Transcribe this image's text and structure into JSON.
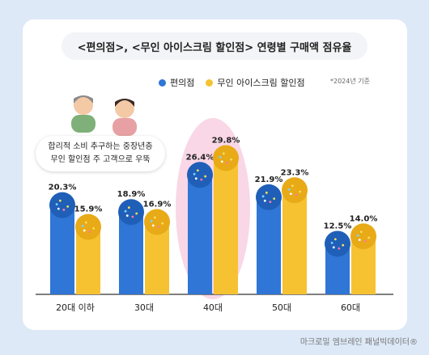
{
  "chart_data": {
    "type": "bar",
    "title": "<편의점>, <무인 아이스크림 할인점> 연령별 구매액 점유율",
    "categories": [
      "20대 이하",
      "30대",
      "40대",
      "50대",
      "60대"
    ],
    "series": [
      {
        "name": "편의점",
        "values": [
          20.3,
          18.9,
          26.4,
          21.9,
          12.5
        ],
        "color": "#2f76d6"
      },
      {
        "name": "무인 아이스크림 할인점",
        "values": [
          15.9,
          16.9,
          29.8,
          23.3,
          14.0
        ],
        "color": "#f6c232"
      }
    ],
    "value_labels": [
      [
        "20.3%",
        "18.9%",
        "26.4%",
        "21.9%",
        "12.5%"
      ],
      [
        "15.9%",
        "16.9%",
        "29.8%",
        "23.3%",
        "14.0%"
      ]
    ],
    "highlight_category": "40대",
    "ylim": [
      0,
      32
    ],
    "legend_position": "top-center"
  },
  "note": "*2024년 기준",
  "callout": {
    "line1": "합리적 소비 추구하는 중장년층",
    "line2": "무인 할인점 주 고객으로 우뚝"
  },
  "source": "마크로밀 엠브레인 패널빅데이터®",
  "colors": {
    "background": "#dde9f7",
    "highlight": "#f9d7e6"
  }
}
